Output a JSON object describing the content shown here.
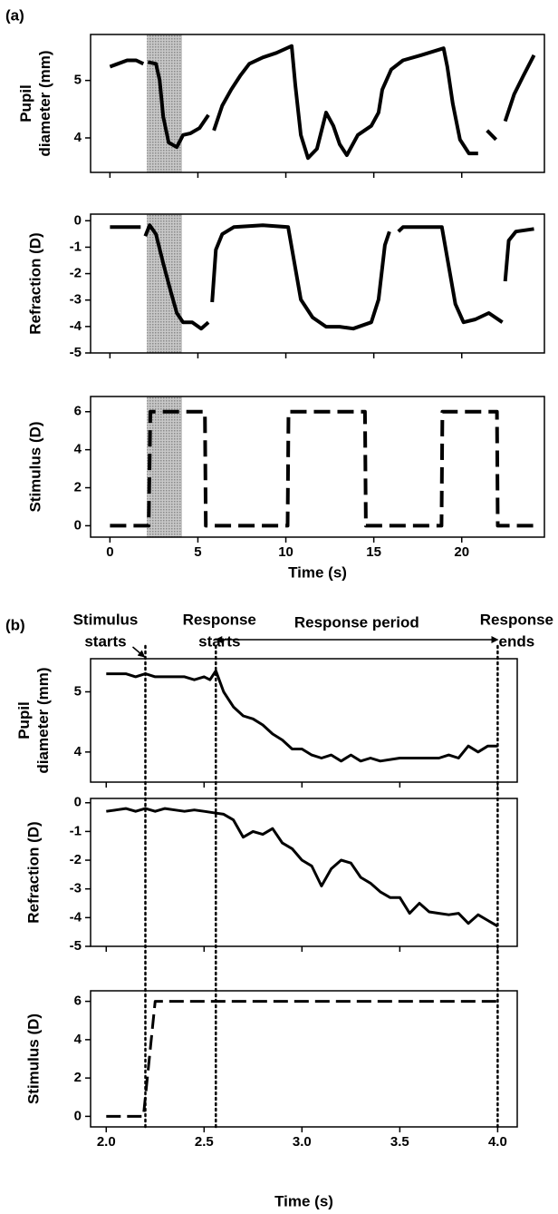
{
  "chart_data": [
    {
      "type": "line",
      "panel_label": "(a)",
      "ylabel": [
        "Pupil",
        "diameter (mm)"
      ],
      "xlim": [
        -1.1,
        24.7
      ],
      "xticks": [
        0,
        5,
        10,
        15,
        20
      ],
      "ylim": [
        3.4,
        5.8
      ],
      "yticks": [
        4,
        5
      ],
      "shade": [
        2.1,
        4.1
      ],
      "color": "#000000",
      "line_style": "solid",
      "x": [
        0.0,
        0.98,
        1.49,
        1.9,
        null,
        2.16,
        2.62,
        2.83,
        3.03,
        3.34,
        3.8,
        4.16,
        4.58,
        5.09,
        5.6,
        null,
        5.91,
        6.38,
        6.89,
        7.4,
        7.92,
        8.69,
        9.46,
        10.33,
        10.54,
        10.85,
        11.26,
        11.77,
        12.29,
        12.7,
        13.06,
        13.47,
        14.09,
        14.86,
        15.27,
        15.48,
        15.99,
        16.66,
        17.69,
        18.97,
        19.18,
        19.49,
        19.9,
        20.41,
        20.93,
        null,
        21.44,
        21.95,
        null,
        22.47,
        22.98,
        23.5,
        24.11
      ],
      "values": [
        5.24,
        5.35,
        5.35,
        5.29,
        null,
        5.32,
        5.29,
        5.0,
        4.37,
        3.92,
        3.84,
        4.05,
        4.08,
        4.17,
        4.4,
        null,
        4.13,
        4.56,
        4.84,
        5.08,
        5.29,
        5.4,
        5.48,
        5.6,
        4.92,
        4.05,
        3.65,
        3.81,
        4.44,
        4.21,
        3.89,
        3.7,
        4.05,
        4.21,
        4.44,
        4.84,
        5.19,
        5.35,
        5.44,
        5.56,
        5.24,
        4.6,
        3.97,
        3.73,
        3.73,
        null,
        4.13,
        3.97,
        null,
        4.29,
        4.76,
        5.08,
        5.44
      ]
    },
    {
      "type": "line",
      "ylabel": [
        "Refraction (D)"
      ],
      "xlim": [
        -1.1,
        24.7
      ],
      "xticks": [
        0,
        5,
        10,
        15,
        20
      ],
      "ylim": [
        -5,
        0.25
      ],
      "yticks": [
        0,
        -1,
        -2,
        -3,
        -4,
        -5
      ],
      "shade": [
        2.1,
        4.1
      ],
      "color": "#000000",
      "line_style": "solid",
      "x": [
        0.0,
        1.75,
        null,
        2.01,
        2.26,
        2.62,
        3.03,
        3.44,
        3.8,
        4.16,
        4.68,
        5.19,
        5.6,
        null,
        5.81,
        6.02,
        6.38,
        7.04,
        8.69,
        10.13,
        10.49,
        10.85,
        11.52,
        12.29,
        13.06,
        13.83,
        14.86,
        15.27,
        15.63,
        15.89,
        null,
        16.4,
        16.66,
        17.94,
        18.87,
        19.23,
        19.64,
        20.1,
        20.77,
        21.54,
        22.31,
        null,
        22.47,
        22.67,
        23.08,
        24.11
      ],
      "values": [
        -0.24,
        -0.24,
        null,
        -0.58,
        -0.17,
        -0.51,
        -1.61,
        -2.64,
        -3.49,
        -3.84,
        -3.84,
        -4.08,
        -3.84,
        null,
        -3.08,
        -1.1,
        -0.51,
        -0.24,
        -0.17,
        -0.24,
        -1.61,
        -2.98,
        -3.66,
        -4.01,
        -4.01,
        -4.08,
        -3.84,
        -2.98,
        -0.92,
        -0.41,
        null,
        -0.41,
        -0.24,
        -0.24,
        -0.24,
        -1.61,
        -3.15,
        -3.84,
        -3.73,
        -3.49,
        -3.84,
        null,
        -2.29,
        -0.75,
        -0.41,
        -0.31
      ]
    },
    {
      "type": "line",
      "ylabel": [
        "Stimulus (D)"
      ],
      "xlabel": "Time (s)",
      "xlim": [
        -1.1,
        24.7
      ],
      "xticks": [
        0,
        5,
        10,
        15,
        20
      ],
      "ylim": [
        -0.6,
        6.8
      ],
      "yticks": [
        0,
        2,
        4,
        6
      ],
      "shade": [
        2.1,
        4.1
      ],
      "color": "#000000",
      "line_style": "dashed",
      "x": [
        0,
        2.2,
        2.3,
        5.4,
        5.45,
        10.1,
        10.15,
        14.5,
        14.55,
        18.85,
        18.9,
        22.0,
        22.05,
        24.47
      ],
      "values": [
        0,
        0,
        6,
        6,
        0,
        0,
        6,
        6,
        0,
        0,
        6,
        6,
        0,
        0
      ]
    },
    {
      "type": "line",
      "panel_label": "(b)",
      "ylabel": [
        "Pupil",
        "diameter (mm)"
      ],
      "xlim": [
        1.92,
        4.1
      ],
      "xticks": [
        {
          "value": 2.0,
          "label": "2.0"
        },
        2.5,
        {
          "value": 3.0,
          "label": "3.0"
        },
        3.5,
        {
          "value": 4.0,
          "label": "4.0"
        }
      ],
      "ylim": [
        3.5,
        5.55
      ],
      "yticks": [
        4,
        5
      ],
      "color": "#000000",
      "line_style": "solid",
      "markers": [
        {
          "x": 2.2,
          "label": [
            "Stimulus",
            "starts"
          ]
        },
        {
          "x": 2.56,
          "label": [
            "Response",
            "starts"
          ]
        },
        {
          "x": 4.0,
          "label": [
            "Response",
            "ends"
          ]
        }
      ],
      "period": {
        "label": "Response period",
        "from": 2.56,
        "to": 4.0
      },
      "x": [
        2.0,
        2.1,
        2.15,
        2.2,
        2.25,
        2.3,
        2.35,
        2.4,
        2.45,
        2.5,
        2.53,
        2.56,
        2.6,
        2.65,
        2.7,
        2.75,
        2.8,
        2.85,
        2.9,
        2.95,
        3.0,
        3.05,
        3.1,
        3.15,
        3.2,
        3.25,
        3.3,
        3.35,
        3.4,
        3.5,
        3.6,
        3.7,
        3.75,
        3.8,
        3.85,
        3.9,
        3.95,
        4.0
      ],
      "values": [
        5.3,
        5.3,
        5.25,
        5.3,
        5.25,
        5.25,
        5.25,
        5.25,
        5.2,
        5.25,
        5.2,
        5.35,
        5.0,
        4.75,
        4.6,
        4.55,
        4.45,
        4.3,
        4.2,
        4.05,
        4.05,
        3.95,
        3.9,
        3.95,
        3.85,
        3.95,
        3.85,
        3.9,
        3.85,
        3.9,
        3.9,
        3.9,
        3.95,
        3.9,
        4.1,
        4.0,
        4.1,
        4.1
      ]
    },
    {
      "type": "line",
      "ylabel": [
        "Refraction (D)"
      ],
      "xlim": [
        1.92,
        4.1
      ],
      "xticks": [
        {
          "value": 2.0,
          "label": "2.0"
        },
        2.5,
        {
          "value": 3.0,
          "label": "3.0"
        },
        3.5,
        {
          "value": 4.0,
          "label": "4.0"
        }
      ],
      "ylim": [
        -5,
        0.15
      ],
      "yticks": [
        0,
        -1,
        -2,
        -3,
        -4,
        -5
      ],
      "color": "#000000",
      "line_style": "solid",
      "x": [
        2.0,
        2.05,
        2.1,
        2.15,
        2.2,
        2.25,
        2.3,
        2.35,
        2.4,
        2.45,
        2.5,
        2.55,
        2.6,
        2.65,
        2.7,
        2.75,
        2.8,
        2.85,
        2.9,
        2.95,
        3.0,
        3.05,
        3.1,
        3.15,
        3.2,
        3.25,
        3.3,
        3.35,
        3.4,
        3.45,
        3.5,
        3.55,
        3.6,
        3.65,
        3.7,
        3.75,
        3.8,
        3.85,
        3.9,
        3.95,
        4.0
      ],
      "values": [
        -0.3,
        -0.25,
        -0.2,
        -0.3,
        -0.2,
        -0.3,
        -0.2,
        -0.25,
        -0.3,
        -0.25,
        -0.3,
        -0.35,
        -0.4,
        -0.6,
        -1.2,
        -1.0,
        -1.1,
        -0.9,
        -1.4,
        -1.6,
        -2.0,
        -2.2,
        -2.9,
        -2.3,
        -2.0,
        -2.1,
        -2.6,
        -2.8,
        -3.1,
        -3.3,
        -3.3,
        -3.85,
        -3.5,
        -3.8,
        -3.85,
        -3.9,
        -3.85,
        -4.2,
        -3.9,
        -4.1,
        -4.3
      ]
    },
    {
      "type": "line",
      "ylabel": [
        "Stimulus (D)"
      ],
      "xlabel": "Time (s)",
      "xlim": [
        1.92,
        4.1
      ],
      "xticks": [
        {
          "value": 2.0,
          "label": "2.0"
        },
        2.5,
        {
          "value": 3.0,
          "label": "3.0"
        },
        3.5,
        {
          "value": 4.0,
          "label": "4.0"
        }
      ],
      "ylim": [
        -0.55,
        6.55
      ],
      "yticks": [
        0,
        2,
        4,
        6
      ],
      "color": "#000000",
      "line_style": "dashed",
      "x": [
        2.0,
        2.19,
        2.25,
        4.0
      ],
      "values": [
        0,
        0,
        6,
        6
      ]
    }
  ]
}
